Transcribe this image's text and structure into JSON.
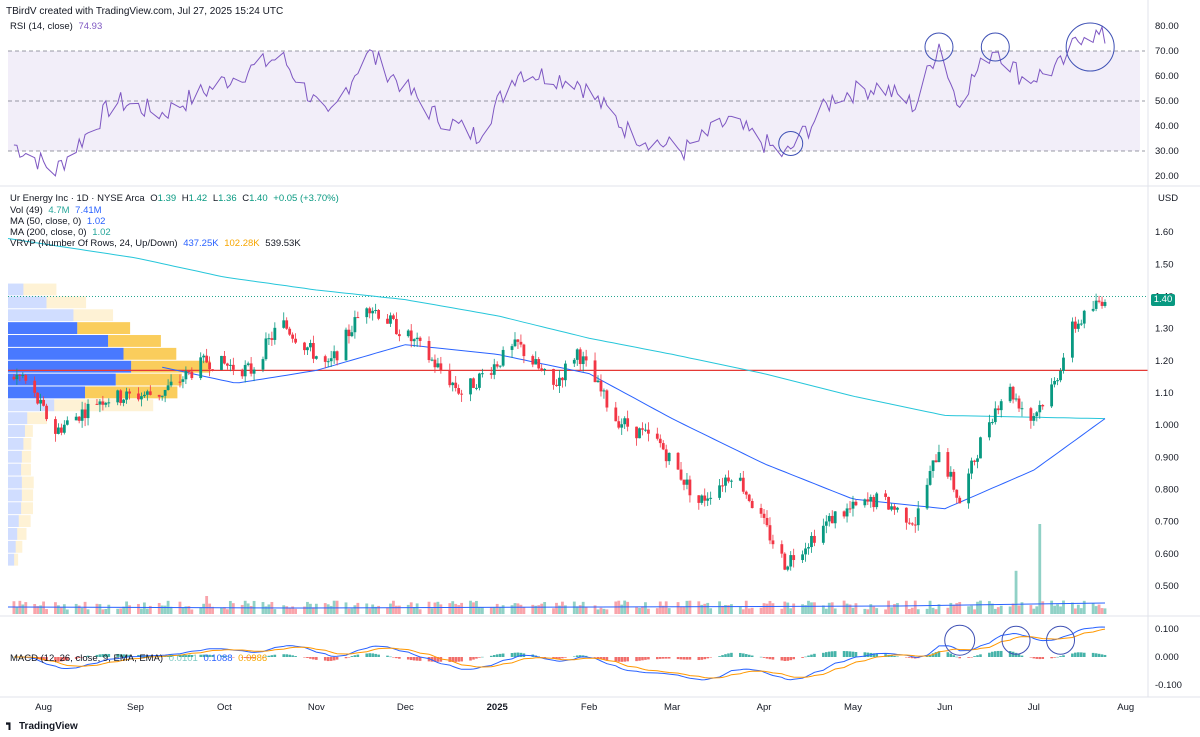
{
  "header": {
    "created_by": "TBirdV created with TradingView.com, Jul 27, 2025 15:24 UTC"
  },
  "rsi_panel": {
    "label": "RSI (14, close)",
    "value": "74.93",
    "levels": [
      "80.00",
      "70.00",
      "60.00",
      "50.00",
      "40.00",
      "30.00",
      "20.00"
    ]
  },
  "price_panel": {
    "title_line": {
      "symbol": "Ur Energy Inc · 1D · NYSE Arca",
      "o_label": "O",
      "o_val": "1.39",
      "h_label": "H",
      "h_val": "1.42",
      "l_label": "L",
      "l_val": "1.36",
      "c_label": "C",
      "c_val": "1.40",
      "chg": "+0.05 (+3.70%)"
    },
    "vol_line": {
      "label": "Vol (49)",
      "v1": "4.7M",
      "v2": "7.41M"
    },
    "ma50_line": {
      "label": "MA (50, close, 0)",
      "v": "1.02"
    },
    "ma200_line": {
      "label": "MA (200, close, 0)",
      "v": "1.02"
    },
    "vrvp_line": {
      "label": "VRVP (Number Of Rows, 24, Up/Down)",
      "v1": "437.25K",
      "v2": "102.28K",
      "v3": "539.53K"
    },
    "currency": "USD",
    "last_price": "1.40",
    "y_ticks": [
      "1.60",
      "1.50",
      "1.40",
      "1.30",
      "1.20",
      "1.10",
      "1.000",
      "0.900",
      "0.800",
      "0.700",
      "0.600",
      "0.500"
    ]
  },
  "macd_panel": {
    "label": "MACD (12, 26, close, 9, EMA, EMA)",
    "v1": "0.0101",
    "v2": "0.1088",
    "v3": "0.0986",
    "levels": [
      "0.100",
      "0.000",
      "-0.100"
    ]
  },
  "x_axis": [
    "Aug",
    "Sep",
    "Oct",
    "Nov",
    "Dec",
    "2025",
    "Feb",
    "Mar",
    "Apr",
    "May",
    "Jun",
    "Jul",
    "Aug"
  ],
  "footer": {
    "brand": "TradingView"
  },
  "colors": {
    "up": "#089981",
    "down": "#f23645",
    "rsi": "#7e57c2",
    "ma50": "#2962ff",
    "ma200": "#26c6da",
    "support": "#e53935",
    "vrvp_up": "#2962ff",
    "vrvp_down": "#f7b100"
  },
  "chart_data": {
    "type": "candlestick",
    "title": "Ur Energy Inc · 1D · NYSE Arca",
    "ylabel": "USD",
    "ylim": [
      0.45,
      1.65
    ],
    "support_level": 1.17,
    "last_close": 1.4,
    "ohlc_keypoints": [
      {
        "date": "Jul 25 2024",
        "close": 1.15
      },
      {
        "date": "Aug 5 2024",
        "close": 0.98
      },
      {
        "date": "Aug 20 2024",
        "close": 1.08
      },
      {
        "date": "Sep 10 2024",
        "close": 1.1
      },
      {
        "date": "Sep 25 2024",
        "close": 1.2
      },
      {
        "date": "Oct 10 2024",
        "close": 1.17
      },
      {
        "date": "Oct 20 2024",
        "close": 1.32
      },
      {
        "date": "Nov 5 2024",
        "close": 1.18
      },
      {
        "date": "Nov 18 2024",
        "close": 1.38
      },
      {
        "date": "Dec 5 2024",
        "close": 1.25
      },
      {
        "date": "Dec 20 2024",
        "close": 1.1
      },
      {
        "date": "Jan 8 2025",
        "close": 1.25
      },
      {
        "date": "Jan 20 2025",
        "close": 1.12
      },
      {
        "date": "Jan 28 2025",
        "close": 1.23
      },
      {
        "date": "Feb 10 2025",
        "close": 1.02
      },
      {
        "date": "Feb 25 2025",
        "close": 0.94
      },
      {
        "date": "Mar 10 2025",
        "close": 0.76
      },
      {
        "date": "Mar 22 2025",
        "close": 0.86
      },
      {
        "date": "Apr 8 2025",
        "close": 0.57
      },
      {
        "date": "Apr 25 2025",
        "close": 0.72
      },
      {
        "date": "May 10 2025",
        "close": 0.77
      },
      {
        "date": "May 22 2025",
        "close": 0.7
      },
      {
        "date": "May 30 2025",
        "close": 0.93
      },
      {
        "date": "Jun 6 2025",
        "close": 0.76
      },
      {
        "date": "Jun 15 2025",
        "close": 1.0
      },
      {
        "date": "Jun 22 2025",
        "close": 1.12
      },
      {
        "date": "Jun 30 2025",
        "close": 1.02
      },
      {
        "date": "Jul 8 2025",
        "close": 1.13
      },
      {
        "date": "Jul 14 2025",
        "close": 1.3
      },
      {
        "date": "Jul 25 2025",
        "close": 1.4
      }
    ],
    "ma50_keypoints": [
      {
        "date": "Sep 10 2024",
        "value": 1.18
      },
      {
        "date": "Oct 5 2024",
        "value": 1.13
      },
      {
        "date": "Nov 1 2024",
        "value": 1.17
      },
      {
        "date": "Dec 1 2024",
        "value": 1.25
      },
      {
        "date": "Jan 1 2025",
        "value": 1.22
      },
      {
        "date": "Feb 1 2025",
        "value": 1.16
      },
      {
        "date": "Mar 1 2025",
        "value": 1.02
      },
      {
        "date": "Apr 1 2025",
        "value": 0.88
      },
      {
        "date": "May 1 2025",
        "value": 0.77
      },
      {
        "date": "Jun 1 2025",
        "value": 0.74
      },
      {
        "date": "Jul 1 2025",
        "value": 0.86
      },
      {
        "date": "Jul 25 2025",
        "value": 1.02
      }
    ],
    "ma200_keypoints": [
      {
        "date": "Jul 20 2024",
        "value": 1.58
      },
      {
        "date": "Sep 1 2024",
        "value": 1.52
      },
      {
        "date": "Oct 1 2024",
        "value": 1.46
      },
      {
        "date": "Nov 1 2024",
        "value": 1.42
      },
      {
        "date": "Dec 1 2024",
        "value": 1.39
      },
      {
        "date": "Jan 1 2025",
        "value": 1.34
      },
      {
        "date": "Feb 1 2025",
        "value": 1.27
      },
      {
        "date": "Mar 1 2025",
        "value": 1.22
      },
      {
        "date": "Apr 1 2025",
        "value": 1.16
      },
      {
        "date": "May 1 2025",
        "value": 1.09
      },
      {
        "date": "Jun 1 2025",
        "value": 1.03
      },
      {
        "date": "Jul 25 2025",
        "value": 1.02
      }
    ],
    "rsi_keypoints": [
      {
        "date": "Jul 20 2024",
        "value": 34
      },
      {
        "date": "Aug 5 2024",
        "value": 22
      },
      {
        "date": "Aug 25 2024",
        "value": 50
      },
      {
        "date": "Sep 10 2024",
        "value": 45
      },
      {
        "date": "Oct 1 2024",
        "value": 58
      },
      {
        "date": "Oct 20 2024",
        "value": 68
      },
      {
        "date": "Nov 5 2024",
        "value": 42
      },
      {
        "date": "Nov 18 2024",
        "value": 70
      },
      {
        "date": "Dec 10 2024",
        "value": 45
      },
      {
        "date": "Dec 25 2024",
        "value": 36
      },
      {
        "date": "Jan 8 2025",
        "value": 62
      },
      {
        "date": "Jan 28 2025",
        "value": 58
      },
      {
        "date": "Feb 15 2025",
        "value": 37
      },
      {
        "date": "Mar 5 2025",
        "value": 30
      },
      {
        "date": "Mar 20 2025",
        "value": 42
      },
      {
        "date": "Apr 8 2025",
        "value": 28
      },
      {
        "date": "Apr 25 2025",
        "value": 52
      },
      {
        "date": "May 10 2025",
        "value": 56
      },
      {
        "date": "May 22 2025",
        "value": 48
      },
      {
        "date": "May 30 2025",
        "value": 73
      },
      {
        "date": "Jun 5 2025",
        "value": 50
      },
      {
        "date": "Jun 18 2025",
        "value": 72
      },
      {
        "date": "Jun 28 2025",
        "value": 58
      },
      {
        "date": "Jul 10 2025",
        "value": 64
      },
      {
        "date": "Jul 18 2025",
        "value": 78
      },
      {
        "date": "Jul 25 2025",
        "value": 75
      }
    ],
    "volume_spikes": [
      {
        "date": "Sep 25 2024",
        "volume_rel": 1.0
      },
      {
        "date": "Oct 20 2024",
        "volume_rel": 0.45
      },
      {
        "date": "Jan 12 2025",
        "volume_rel": 0.8
      },
      {
        "date": "Jun 25 2025",
        "volume_rel": 2.4
      },
      {
        "date": "Jul 3 2025",
        "volume_rel": 5.0
      }
    ]
  }
}
